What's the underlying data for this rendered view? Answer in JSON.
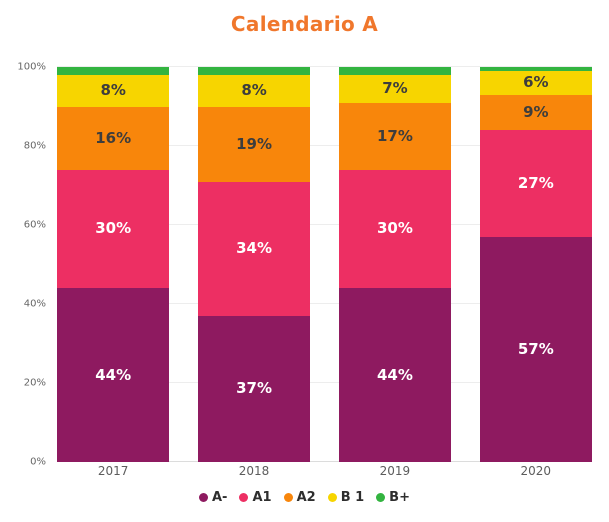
{
  "title": "Calendario A",
  "title_color": "#f0772c",
  "chart_data": {
    "type": "bar",
    "stacked": true,
    "percent": true,
    "title": "Calendario A",
    "categories": [
      "2017",
      "2018",
      "2019",
      "2020"
    ],
    "series": [
      {
        "name": "A-",
        "color": "#8e1a60",
        "label_color": "#ffffff",
        "values": [
          44,
          37,
          44,
          57
        ]
      },
      {
        "name": "A1",
        "color": "#ed2f63",
        "label_color": "#ffffff",
        "values": [
          30,
          34,
          30,
          27
        ]
      },
      {
        "name": "A2",
        "color": "#f8860b",
        "label_color": "#3d3d3d",
        "values": [
          16,
          19,
          17,
          9
        ]
      },
      {
        "name": "B 1",
        "color": "#f7d500",
        "label_color": "#3d3d3d",
        "values": [
          8,
          8,
          7,
          6
        ]
      },
      {
        "name": "B+",
        "color": "#33b440",
        "label_color": "#ffffff",
        "values": [
          2,
          2,
          2,
          1
        ]
      }
    ],
    "y_ticks": [
      "0%",
      "20%",
      "40%",
      "60%",
      "80%",
      "100%"
    ],
    "ylim": [
      0,
      100
    ],
    "label_min": 5,
    "label_suffix": "%",
    "grid": true,
    "legend_position": "bottom"
  }
}
